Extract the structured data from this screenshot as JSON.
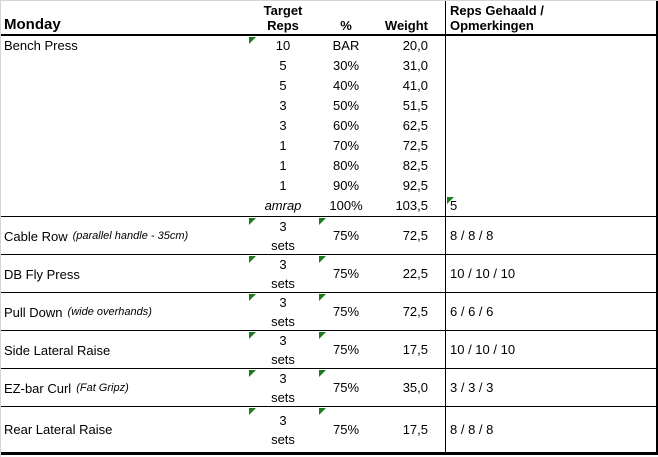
{
  "header": {
    "day": "Monday",
    "target_line1": "Target",
    "target_line2": "Reps",
    "percent": "%",
    "weight": "Weight",
    "notes_line1": "Reps Gehaald /",
    "notes_line2": "Opmerkingen"
  },
  "bench": {
    "name": "Bench Press",
    "sets": [
      {
        "reps": "10",
        "percent": "BAR",
        "weight": "20,0",
        "result": "",
        "reps_flag": true,
        "result_flag": false,
        "italic_reps": false
      },
      {
        "reps": "5",
        "percent": "30%",
        "weight": "31,0",
        "result": "",
        "reps_flag": false,
        "result_flag": false,
        "italic_reps": false
      },
      {
        "reps": "5",
        "percent": "40%",
        "weight": "41,0",
        "result": "",
        "reps_flag": false,
        "result_flag": false,
        "italic_reps": false
      },
      {
        "reps": "3",
        "percent": "50%",
        "weight": "51,5",
        "result": "",
        "reps_flag": false,
        "result_flag": false,
        "italic_reps": false
      },
      {
        "reps": "3",
        "percent": "60%",
        "weight": "62,5",
        "result": "",
        "reps_flag": false,
        "result_flag": false,
        "italic_reps": false
      },
      {
        "reps": "1",
        "percent": "70%",
        "weight": "72,5",
        "result": "",
        "reps_flag": false,
        "result_flag": false,
        "italic_reps": false
      },
      {
        "reps": "1",
        "percent": "80%",
        "weight": "82,5",
        "result": "",
        "reps_flag": false,
        "result_flag": false,
        "italic_reps": false
      },
      {
        "reps": "1",
        "percent": "90%",
        "weight": "92,5",
        "result": "",
        "reps_flag": false,
        "result_flag": false,
        "italic_reps": false
      },
      {
        "reps": "amrap",
        "percent": "100%",
        "weight": "103,5",
        "result": "5",
        "reps_flag": false,
        "result_flag": true,
        "italic_reps": true
      }
    ]
  },
  "exercises": [
    {
      "name": "Cable Row",
      "note": "(parallel handle - 35cm)",
      "sets_top": "3",
      "sets_bottom": "sets",
      "percent": "75%",
      "weight": "72,5",
      "result": "8 / 8 / 8",
      "sets_flag": true,
      "percent_flag": true
    },
    {
      "name": "DB Fly Press",
      "note": "",
      "sets_top": "3",
      "sets_bottom": "sets",
      "percent": "75%",
      "weight": "22,5",
      "result": "10 / 10 / 10",
      "sets_flag": true,
      "percent_flag": true
    },
    {
      "name": "Pull Down",
      "note": "(wide overhands)",
      "sets_top": "3",
      "sets_bottom": "sets",
      "percent": "75%",
      "weight": "72,5",
      "result": "6 / 6 / 6",
      "sets_flag": true,
      "percent_flag": true
    },
    {
      "name": "Side Lateral Raise",
      "note": "",
      "sets_top": "3",
      "sets_bottom": "sets",
      "percent": "75%",
      "weight": "17,5",
      "result": "10 / 10 / 10",
      "sets_flag": true,
      "percent_flag": true
    },
    {
      "name": "EZ-bar Curl",
      "note": "(Fat Gripz)",
      "sets_top": "3",
      "sets_bottom": "sets",
      "percent": "75%",
      "weight": "35,0",
      "result": "3 / 3 / 3",
      "sets_flag": true,
      "percent_flag": true
    },
    {
      "name": "Rear Lateral Raise",
      "note": "",
      "sets_top": "3",
      "sets_bottom": "sets",
      "percent": "75%",
      "weight": "17,5",
      "result": "8 / 8 / 8",
      "sets_flag": true,
      "percent_flag": true
    }
  ],
  "colors": {
    "indicator_green": "#1e7b1e",
    "grid_black": "#000000",
    "frame_gray": "#d5d5d5",
    "background": "#ffffff",
    "text": "#000000"
  }
}
